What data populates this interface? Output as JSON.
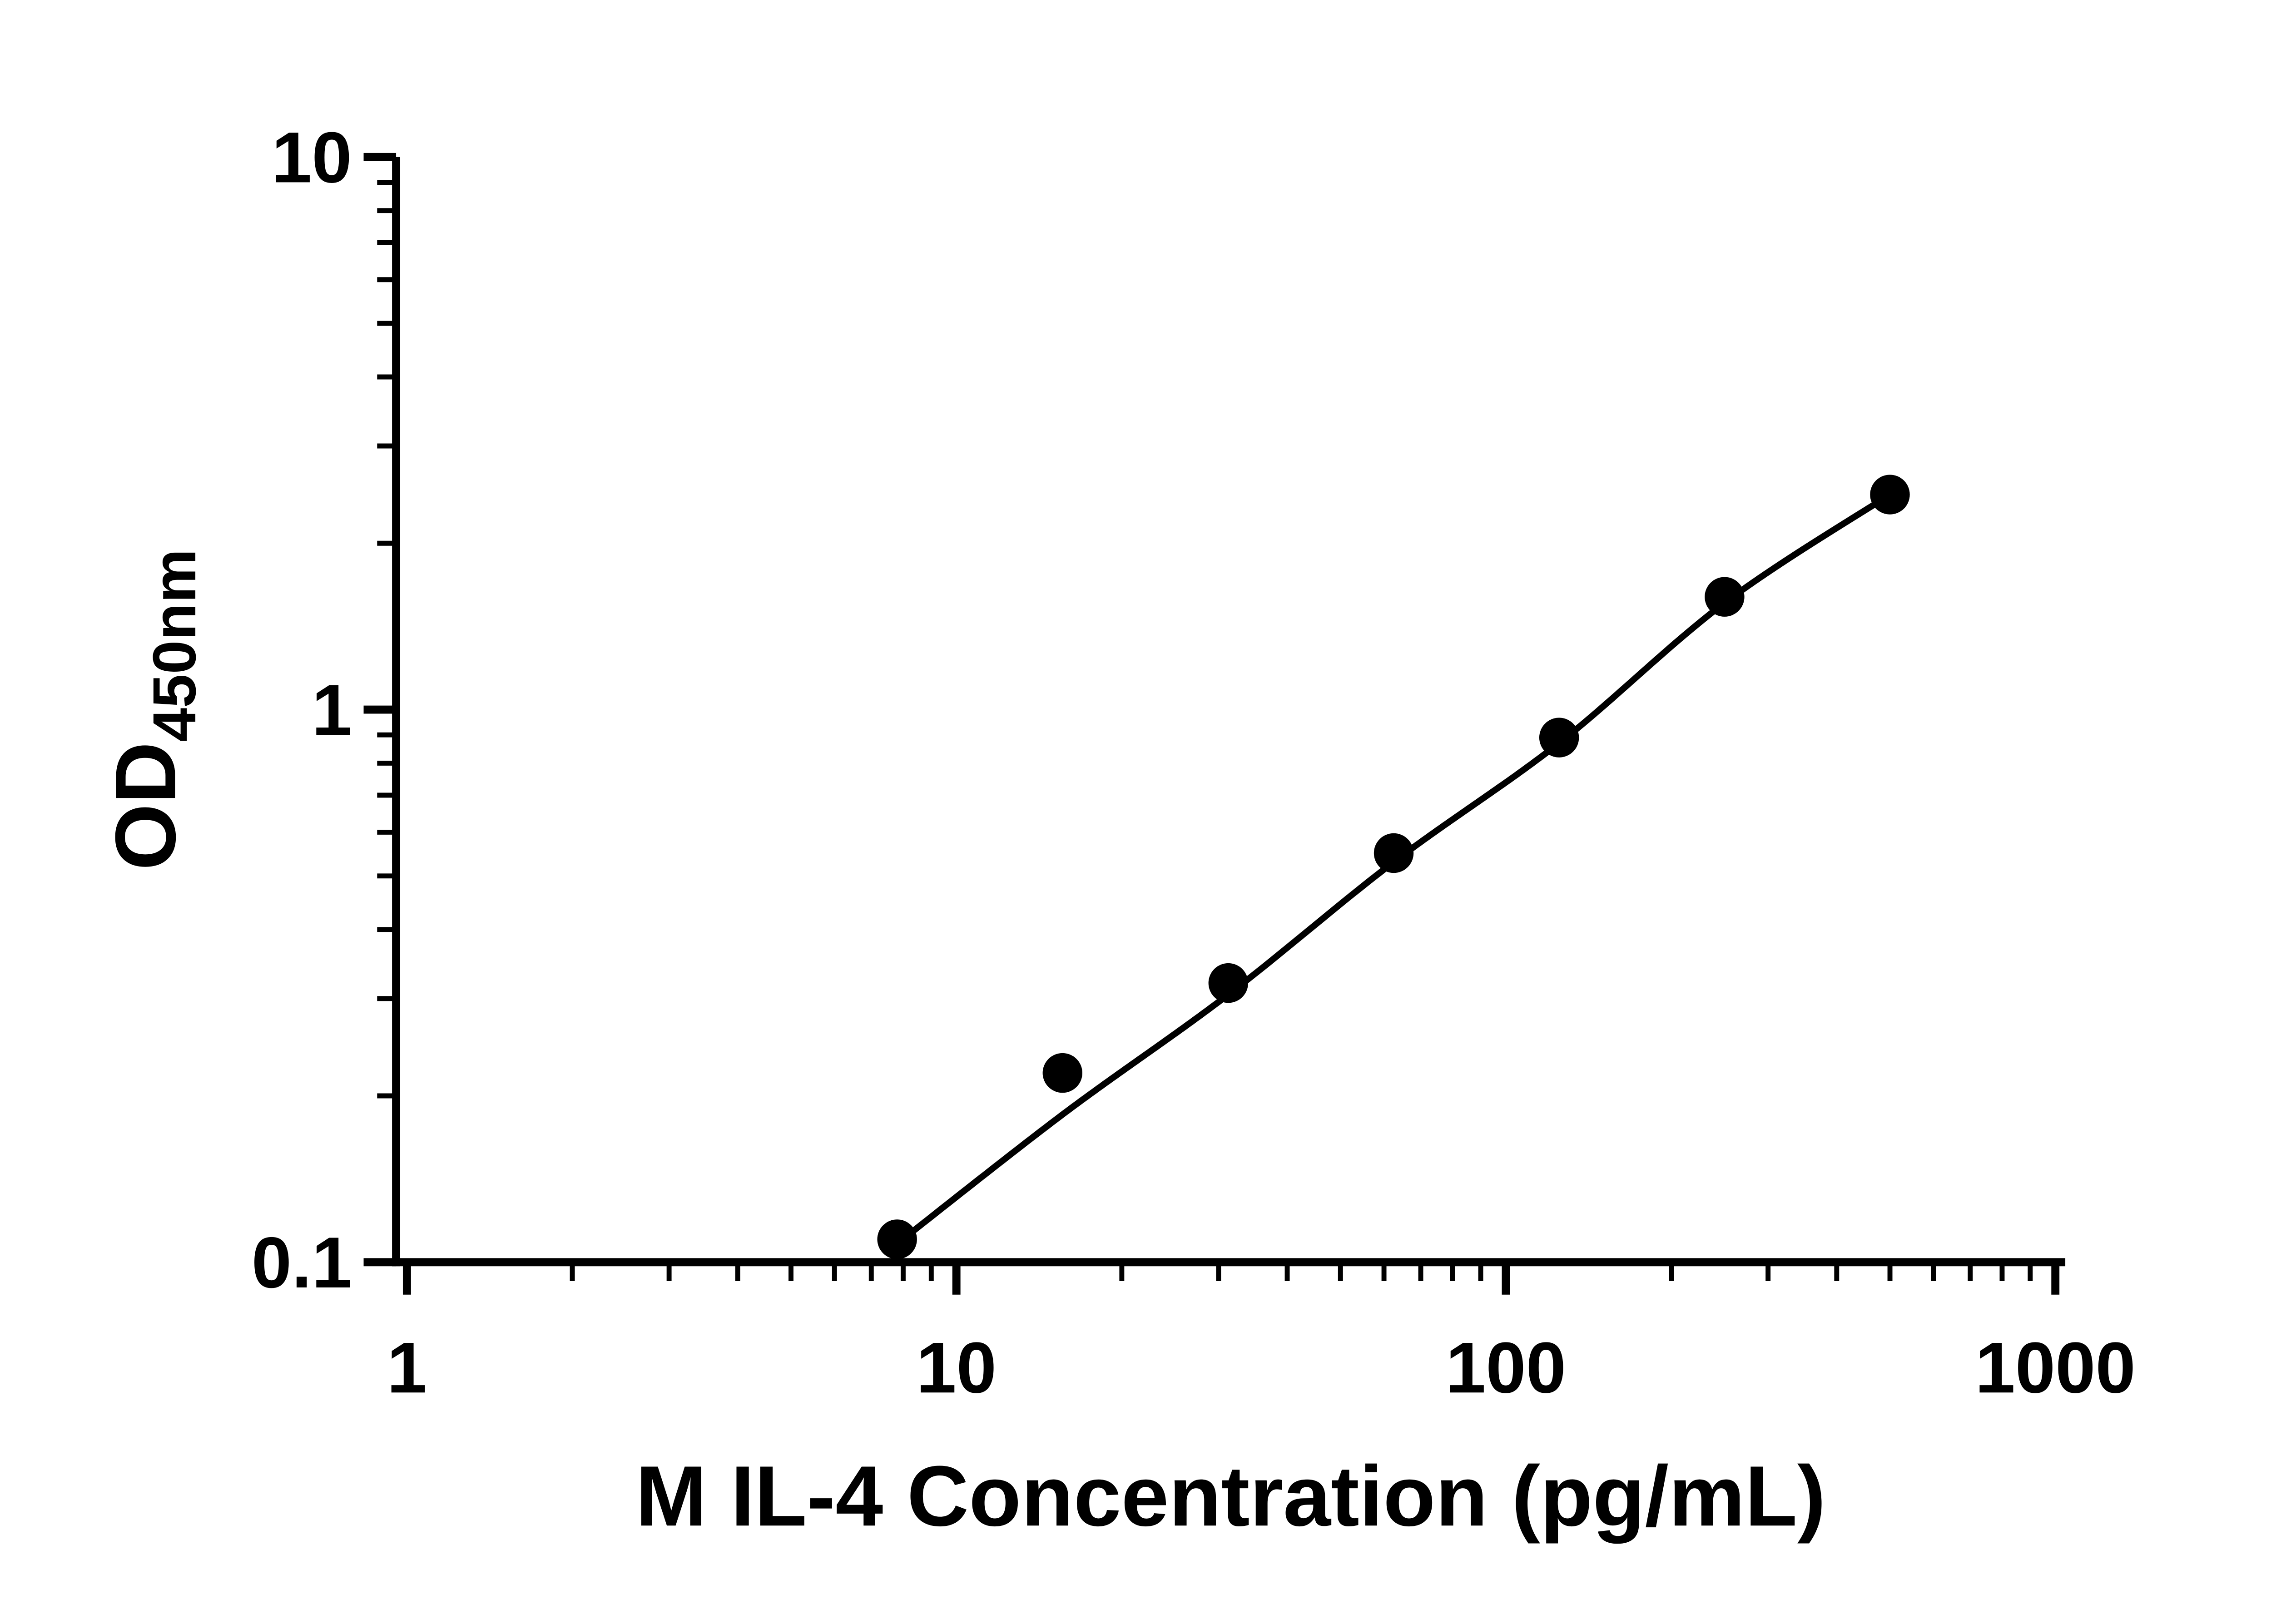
{
  "chart_data": {
    "type": "scatter",
    "title": "",
    "xlabel": "M IL-4 Concentration (pg/mL)",
    "ylabel": "OD",
    "ylabel_subscript": "450nm",
    "x_scale": "log",
    "y_scale": "log",
    "xlim": [
      1,
      1000
    ],
    "ylim": [
      0.1,
      10
    ],
    "x_ticks": [
      1,
      10,
      100,
      1000
    ],
    "x_tick_labels": [
      "1",
      "10",
      "100",
      "1000"
    ],
    "y_ticks": [
      10,
      1,
      0.1
    ],
    "y_tick_labels": [
      "10",
      "1",
      "0.1"
    ],
    "grid": false,
    "legend": false,
    "axis_color": "#000000",
    "background": "#ffffff",
    "series": [
      {
        "name": "fit-line",
        "style": "line",
        "color": "#000000",
        "x": [
          7.8,
          15.6,
          31.25,
          62.5,
          125,
          250,
          500
        ],
        "y": [
          0.108,
          0.185,
          0.305,
          0.53,
          0.87,
          1.56,
          2.45
        ]
      },
      {
        "name": "standard-curve-points",
        "marker": "circle",
        "color": "#000000",
        "x": [
          7.8,
          15.6,
          31.25,
          62.5,
          125,
          250,
          500
        ],
        "y": [
          0.11,
          0.22,
          0.32,
          0.55,
          0.89,
          1.6,
          2.45
        ]
      }
    ]
  }
}
